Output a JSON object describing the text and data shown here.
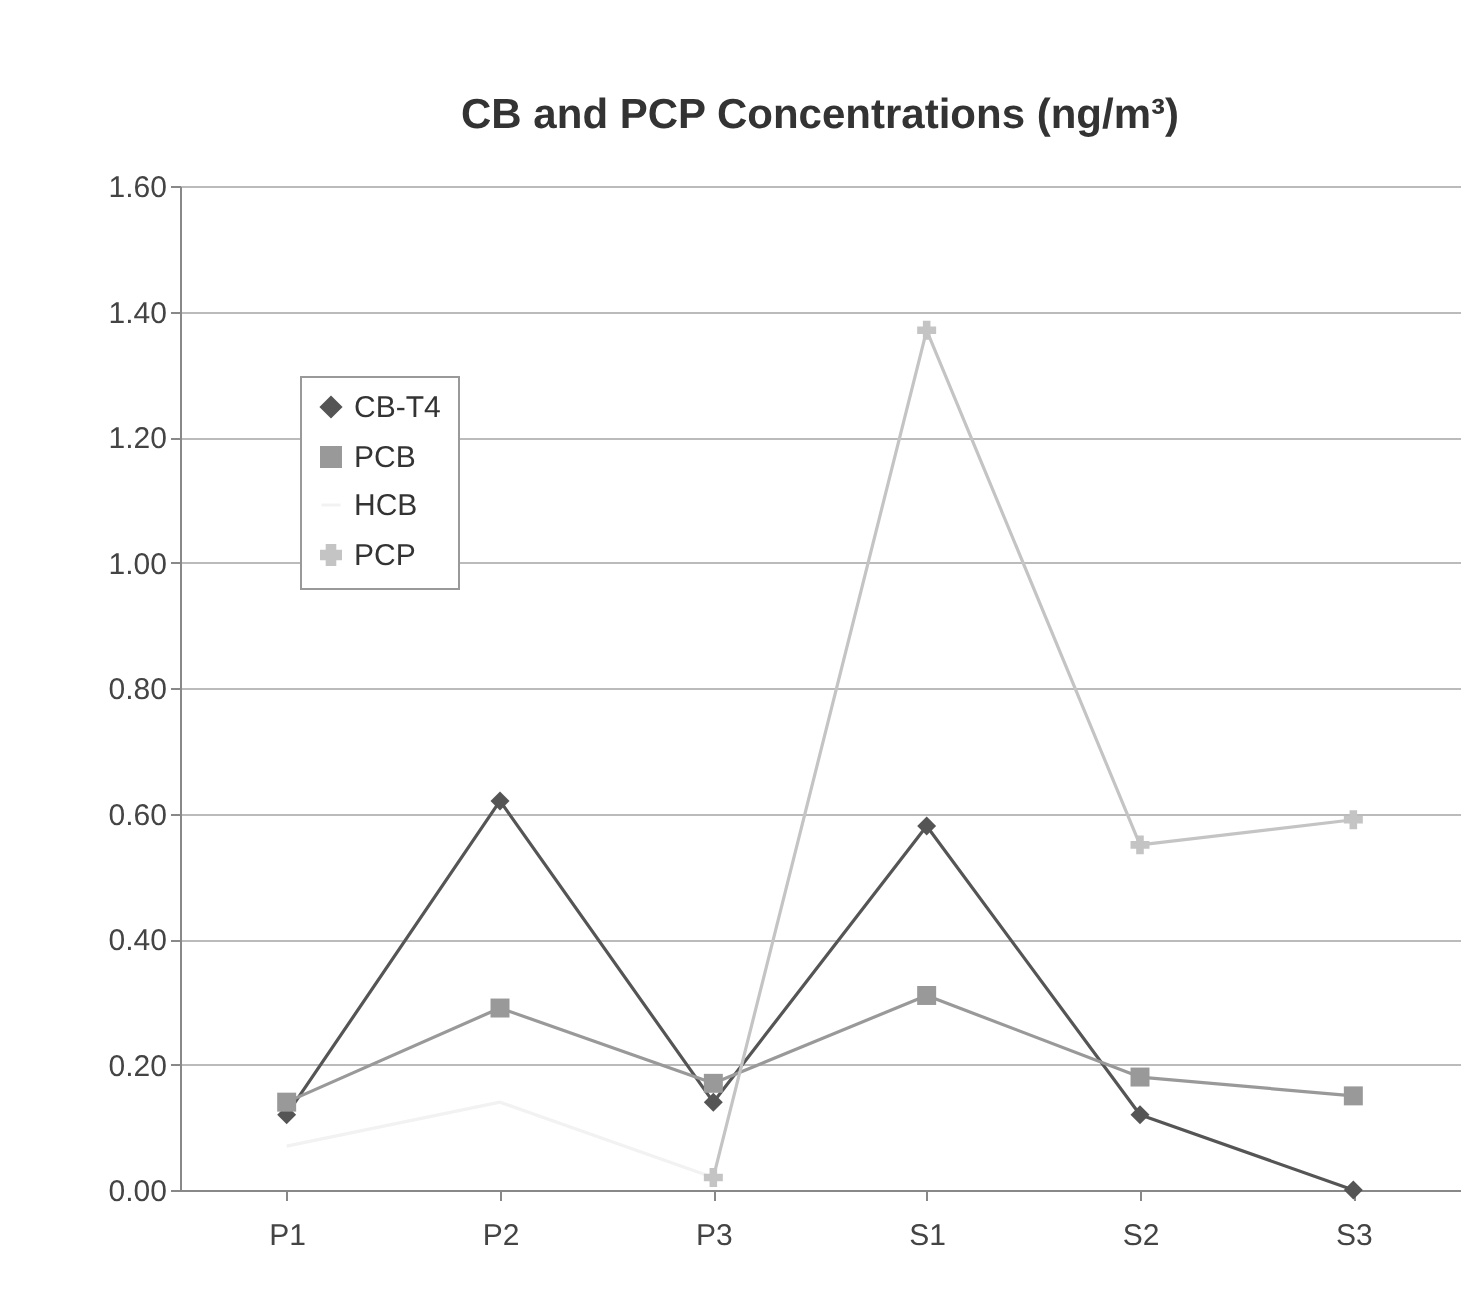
{
  "chart_data": {
    "type": "line",
    "title": "CB and PCP Concentrations (ng/m³)",
    "categories": [
      "P1",
      "P2",
      "P3",
      "S1",
      "S2",
      "S3"
    ],
    "series": [
      {
        "name": "CB-T4",
        "color": "#555555",
        "marker": "diamond",
        "values": [
          0.12,
          0.62,
          0.14,
          0.58,
          0.12,
          0.0
        ]
      },
      {
        "name": "PCB",
        "color": "#999999",
        "marker": "square",
        "values": [
          0.14,
          0.29,
          0.17,
          0.31,
          0.18,
          0.15
        ]
      },
      {
        "name": "HCB",
        "color": "#f2f2f2",
        "marker": "none",
        "values": [
          0.07,
          0.14,
          0.02,
          null,
          null,
          null
        ]
      },
      {
        "name": "PCP",
        "color": "#c4c4c4",
        "marker": "cross",
        "values": [
          null,
          null,
          0.02,
          1.37,
          0.55,
          0.59
        ]
      }
    ],
    "ylim": [
      0,
      1.6
    ],
    "yticks": [
      {
        "value": 0,
        "label": "0.00"
      },
      {
        "value": 0.2,
        "label": "0.20"
      },
      {
        "value": 0.4,
        "label": "0.40"
      },
      {
        "value": 0.6,
        "label": "0.60"
      },
      {
        "value": 0.8,
        "label": "0.80"
      },
      {
        "value": 1.0,
        "label": "1.00"
      },
      {
        "value": 1.2,
        "label": "1.20"
      },
      {
        "value": 1.4,
        "label": "1.40"
      },
      {
        "value": 1.6,
        "label": "1.60"
      }
    ],
    "grid": "y",
    "legend": "top left"
  }
}
